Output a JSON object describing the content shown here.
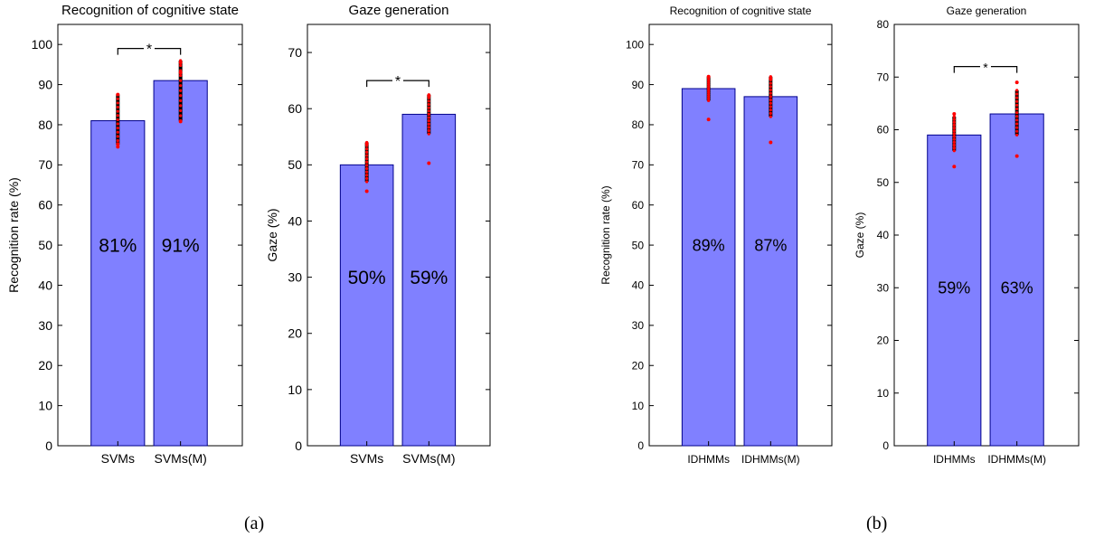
{
  "chart_data": [
    {
      "type": "bar",
      "title": "Recognition of cognitive state",
      "ylabel": "Recognition rate (%)",
      "xlabel": "",
      "categories": [
        "SVMs",
        "SVMs(M)"
      ],
      "values": [
        81,
        91
      ],
      "value_labels": [
        "81%",
        "91%"
      ],
      "ylim": [
        0,
        105
      ],
      "yticks": [
        0,
        10,
        20,
        30,
        40,
        50,
        60,
        70,
        80,
        90,
        100
      ],
      "bar_color": "#8080ff",
      "significance": {
        "from": 0,
        "to": 1,
        "label": "*",
        "y": 99
      },
      "spread": [
        [
          75,
          87.5
        ],
        [
          81,
          96
        ]
      ],
      "outliers": [
        [
          74.5,
          75.2,
          87.5
        ],
        [
          80.8,
          93,
          95.5
        ]
      ]
    },
    {
      "type": "bar",
      "title": "Gaze generation",
      "ylabel": "Gaze (%)",
      "xlabel": "",
      "categories": [
        "SVMs",
        "SVMs(M)"
      ],
      "values": [
        50,
        59
      ],
      "value_labels": [
        "50%",
        "59%"
      ],
      "ylim": [
        0,
        75
      ],
      "yticks": [
        0,
        10,
        20,
        30,
        40,
        50,
        60,
        70
      ],
      "bar_color": "#8080ff",
      "significance": {
        "from": 0,
        "to": 1,
        "label": "*",
        "y": 65
      },
      "spread": [
        [
          47,
          54
        ],
        [
          55.5,
          62.5
        ]
      ],
      "outliers": [
        [
          45.3,
          53.8
        ],
        [
          50.3,
          62.3
        ]
      ]
    },
    {
      "type": "bar",
      "title": "Recognition of cognitive state",
      "ylabel": "Recognition rate (%)",
      "xlabel": "",
      "categories": [
        "IDHMMs",
        "IDHMMs(M)"
      ],
      "values": [
        89,
        87
      ],
      "value_labels": [
        "89%",
        "87%"
      ],
      "ylim": [
        0,
        105
      ],
      "yticks": [
        0,
        10,
        20,
        30,
        40,
        50,
        60,
        70,
        80,
        90,
        100
      ],
      "bar_color": "#8080ff",
      "significance": null,
      "spread": [
        [
          86,
          92
        ],
        [
          82,
          92
        ]
      ],
      "outliers": [
        [
          81.3,
          92
        ],
        [
          75.6,
          91.5
        ]
      ]
    },
    {
      "type": "bar",
      "title": "Gaze generation",
      "ylabel": "Gaze (%)",
      "xlabel": "",
      "categories": [
        "IDHMMs",
        "IDHMMs(M)"
      ],
      "values": [
        59,
        63
      ],
      "value_labels": [
        "59%",
        "63%"
      ],
      "ylim": [
        0,
        80
      ],
      "yticks": [
        0,
        10,
        20,
        30,
        40,
        50,
        60,
        70,
        80
      ],
      "bar_color": "#8080ff",
      "significance": {
        "from": 0,
        "to": 1,
        "label": "*",
        "y": 72
      },
      "spread": [
        [
          56,
          62.5
        ],
        [
          59,
          67.5
        ]
      ],
      "outliers": [
        [
          53,
          63
        ],
        [
          55,
          69
        ]
      ]
    }
  ],
  "captions": {
    "a": "(a)",
    "b": "(b)"
  }
}
